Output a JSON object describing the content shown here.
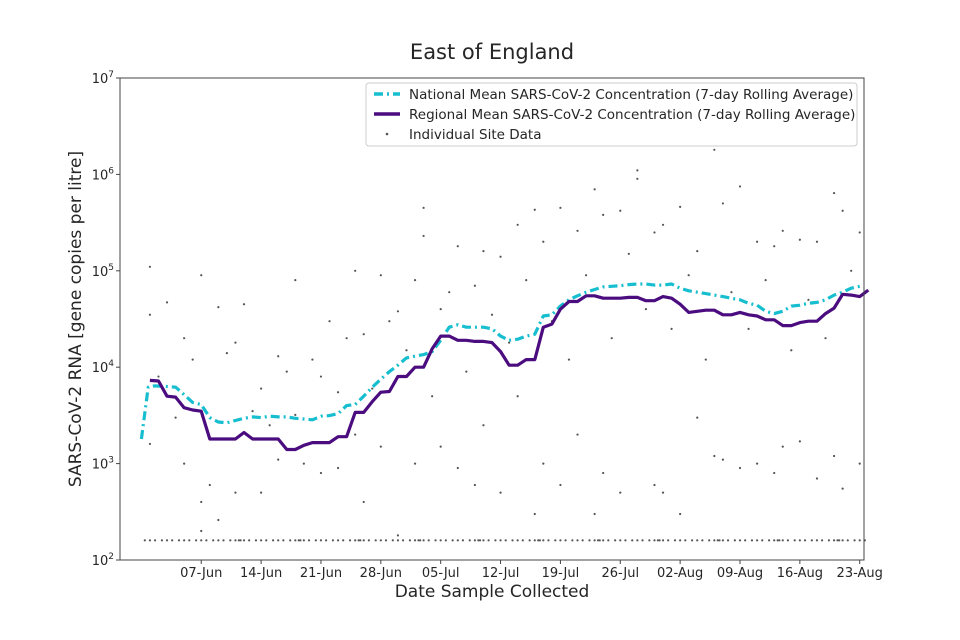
{
  "chart_data": {
    "type": "line",
    "title": "East of England",
    "xlabel": "Date Sample Collected",
    "ylabel": "SARS-CoV-2 RNA [gene copies per litre]",
    "yscale": "log",
    "ylim": [
      100,
      10000000
    ],
    "x_range_days": [
      0,
      84
    ],
    "x_unit": "days since 31-May",
    "grid": false,
    "legend_position": "top-right",
    "x_ticks": [
      {
        "day": 7,
        "label": "07-Jun"
      },
      {
        "day": 14,
        "label": "14-Jun"
      },
      {
        "day": 21,
        "label": "21-Jun"
      },
      {
        "day": 28,
        "label": "28-Jun"
      },
      {
        "day": 35,
        "label": "05-Jul"
      },
      {
        "day": 42,
        "label": "12-Jul"
      },
      {
        "day": 49,
        "label": "19-Jul"
      },
      {
        "day": 56,
        "label": "26-Jul"
      },
      {
        "day": 63,
        "label": "02-Aug"
      },
      {
        "day": 70,
        "label": "09-Aug"
      },
      {
        "day": 77,
        "label": "16-Aug"
      },
      {
        "day": 84,
        "label": "23-Aug"
      }
    ],
    "y_ticks": [
      {
        "value": 100,
        "base": "10",
        "exp": "2"
      },
      {
        "value": 1000,
        "base": "10",
        "exp": "3"
      },
      {
        "value": 10000,
        "base": "10",
        "exp": "4"
      },
      {
        "value": 100000,
        "base": "10",
        "exp": "5"
      },
      {
        "value": 1000000,
        "base": "10",
        "exp": "6"
      },
      {
        "value": 10000000,
        "base": "10",
        "exp": "7"
      }
    ],
    "series": [
      {
        "name": "National Mean SARS-CoV-2 Concentration (7-day Rolling Average)",
        "color": "#17becf",
        "style": "dashdot",
        "points": [
          [
            0,
            1800
          ],
          [
            0.8,
            6200
          ],
          [
            1.5,
            6400
          ],
          [
            3,
            6300
          ],
          [
            4,
            6200
          ],
          [
            5,
            5200
          ],
          [
            6,
            4300
          ],
          [
            7,
            4100
          ],
          [
            8,
            3000
          ],
          [
            9,
            2700
          ],
          [
            10,
            2650
          ],
          [
            11,
            2800
          ],
          [
            12,
            2950
          ],
          [
            13,
            3050
          ],
          [
            14,
            3000
          ],
          [
            15,
            3100
          ],
          [
            16,
            3050
          ],
          [
            17,
            3050
          ],
          [
            18,
            2950
          ],
          [
            19,
            2900
          ],
          [
            20,
            2850
          ],
          [
            21,
            3100
          ],
          [
            22,
            3150
          ],
          [
            23,
            3300
          ],
          [
            24,
            4000
          ],
          [
            25,
            4100
          ],
          [
            26,
            5000
          ],
          [
            27,
            6200
          ],
          [
            28,
            7500
          ],
          [
            29,
            9000
          ],
          [
            30,
            10500
          ],
          [
            31,
            12500
          ],
          [
            32,
            13000
          ],
          [
            33,
            13500
          ],
          [
            34,
            14500
          ],
          [
            35,
            19000
          ],
          [
            36,
            26000
          ],
          [
            37,
            27500
          ],
          [
            38,
            26000
          ],
          [
            39,
            26000
          ],
          [
            40,
            26000
          ],
          [
            41,
            25000
          ],
          [
            42,
            21000
          ],
          [
            43,
            19000
          ],
          [
            44,
            19500
          ],
          [
            45,
            21000
          ],
          [
            46,
            22000
          ],
          [
            47,
            34000
          ],
          [
            48,
            35000
          ],
          [
            49,
            43000
          ],
          [
            50,
            50000
          ],
          [
            51,
            55000
          ],
          [
            52,
            60000
          ],
          [
            53,
            64000
          ],
          [
            54,
            68000
          ],
          [
            55,
            69000
          ],
          [
            56,
            70000
          ],
          [
            57,
            72000
          ],
          [
            58,
            73000
          ],
          [
            59,
            73000
          ],
          [
            60,
            71000
          ],
          [
            61,
            71000
          ],
          [
            62,
            73000
          ],
          [
            63,
            66000
          ],
          [
            64,
            62000
          ],
          [
            65,
            60000
          ],
          [
            66,
            58000
          ],
          [
            67,
            56000
          ],
          [
            68,
            54000
          ],
          [
            69,
            52000
          ],
          [
            70,
            50000
          ],
          [
            71,
            46000
          ],
          [
            72,
            44000
          ],
          [
            73,
            38000
          ],
          [
            74,
            36000
          ],
          [
            75,
            38000
          ],
          [
            76,
            43000
          ],
          [
            77,
            44000
          ],
          [
            78,
            46000
          ],
          [
            79,
            47000
          ],
          [
            80,
            50000
          ],
          [
            81,
            56000
          ],
          [
            82,
            60000
          ],
          [
            83,
            66000
          ],
          [
            84,
            69000
          ]
        ]
      },
      {
        "name": "Regional Mean SARS-CoV-2 Concentration (7-day Rolling Average)",
        "color": "#4b0c7f",
        "style": "solid",
        "points": [
          [
            1,
            7300
          ],
          [
            2,
            7200
          ],
          [
            3,
            5000
          ],
          [
            4,
            4900
          ],
          [
            5,
            3800
          ],
          [
            6,
            3600
          ],
          [
            7,
            3500
          ],
          [
            8,
            1800
          ],
          [
            9,
            1800
          ],
          [
            10,
            1800
          ],
          [
            11,
            1800
          ],
          [
            12,
            2100
          ],
          [
            13,
            1800
          ],
          [
            14,
            1800
          ],
          [
            15,
            1800
          ],
          [
            16,
            1800
          ],
          [
            17,
            1400
          ],
          [
            18,
            1400
          ],
          [
            19,
            1550
          ],
          [
            20,
            1650
          ],
          [
            21,
            1650
          ],
          [
            22,
            1650
          ],
          [
            23,
            1900
          ],
          [
            24,
            1900
          ],
          [
            25,
            3400
          ],
          [
            26,
            3400
          ],
          [
            27,
            4400
          ],
          [
            28,
            5500
          ],
          [
            29,
            5600
          ],
          [
            30,
            8000
          ],
          [
            31,
            8000
          ],
          [
            32,
            10000
          ],
          [
            33,
            10000
          ],
          [
            34,
            15500
          ],
          [
            35,
            21000
          ],
          [
            36,
            21000
          ],
          [
            37,
            19000
          ],
          [
            38,
            19000
          ],
          [
            39,
            18500
          ],
          [
            40,
            18500
          ],
          [
            41,
            18000
          ],
          [
            42,
            14500
          ],
          [
            43,
            10500
          ],
          [
            44,
            10500
          ],
          [
            45,
            12000
          ],
          [
            46,
            12000
          ],
          [
            47,
            26000
          ],
          [
            48,
            28000
          ],
          [
            49,
            40000
          ],
          [
            50,
            48000
          ],
          [
            51,
            48000
          ],
          [
            52,
            55000
          ],
          [
            53,
            55000
          ],
          [
            54,
            52000
          ],
          [
            55,
            52000
          ],
          [
            56,
            52000
          ],
          [
            57,
            53000
          ],
          [
            58,
            53000
          ],
          [
            59,
            49000
          ],
          [
            60,
            49000
          ],
          [
            61,
            54000
          ],
          [
            62,
            52000
          ],
          [
            63,
            45000
          ],
          [
            64,
            37000
          ],
          [
            65,
            38000
          ],
          [
            66,
            39000
          ],
          [
            67,
            39000
          ],
          [
            68,
            35000
          ],
          [
            69,
            35000
          ],
          [
            70,
            37000
          ],
          [
            71,
            35000
          ],
          [
            72,
            34000
          ],
          [
            73,
            31000
          ],
          [
            74,
            31000
          ],
          [
            75,
            27000
          ],
          [
            76,
            27000
          ],
          [
            77,
            29000
          ],
          [
            78,
            30000
          ],
          [
            79,
            30000
          ],
          [
            80,
            36000
          ],
          [
            81,
            41000
          ],
          [
            82,
            57000
          ],
          [
            83,
            56000
          ],
          [
            84,
            54000
          ],
          [
            85,
            63000
          ]
        ]
      }
    ],
    "scatter": {
      "name": "Individual Site Data",
      "color": "#555555",
      "sample_days": [
        1,
        3,
        5,
        7,
        9,
        11,
        12,
        14,
        16,
        18,
        19,
        21,
        23,
        25,
        26,
        28,
        30,
        32,
        33,
        35,
        37,
        39,
        40,
        42,
        44,
        46,
        47,
        49,
        51,
        53,
        54,
        56,
        58,
        60,
        61,
        63,
        65,
        67,
        68,
        70,
        72,
        74,
        75,
        77,
        79,
        81,
        82,
        84
      ],
      "points": [
        [
          1,
          1600
        ],
        [
          1,
          110000
        ],
        [
          1,
          35000
        ],
        [
          3,
          47000
        ],
        [
          5,
          20000
        ],
        [
          5,
          1000
        ],
        [
          7,
          90000
        ],
        [
          7,
          200
        ],
        [
          7,
          400
        ],
        [
          9,
          260
        ],
        [
          9,
          42000
        ],
        [
          11,
          18000
        ],
        [
          11,
          500
        ],
        [
          12,
          45000
        ],
        [
          14,
          6000
        ],
        [
          14,
          500
        ],
        [
          16,
          13000
        ],
        [
          16,
          1100
        ],
        [
          18,
          80000
        ],
        [
          18,
          3200
        ],
        [
          19,
          1000
        ],
        [
          21,
          8000
        ],
        [
          21,
          800
        ],
        [
          23,
          5500
        ],
        [
          23,
          900
        ],
        [
          25,
          100000
        ],
        [
          25,
          2000
        ],
        [
          26,
          22000
        ],
        [
          26,
          400
        ],
        [
          28,
          90000
        ],
        [
          28,
          1500
        ],
        [
          30,
          38000
        ],
        [
          30,
          180
        ],
        [
          32,
          80000
        ],
        [
          32,
          1000
        ],
        [
          33,
          450000
        ],
        [
          33,
          230000
        ],
        [
          35,
          40000
        ],
        [
          35,
          1500
        ],
        [
          37,
          180000
        ],
        [
          37,
          900
        ],
        [
          39,
          70000
        ],
        [
          39,
          600
        ],
        [
          40,
          160000
        ],
        [
          40,
          2500
        ],
        [
          42,
          140000
        ],
        [
          42,
          500
        ],
        [
          44,
          300000
        ],
        [
          44,
          5000
        ],
        [
          46,
          430000
        ],
        [
          46,
          300
        ],
        [
          47,
          200000
        ],
        [
          47,
          1000
        ],
        [
          49,
          450000
        ],
        [
          49,
          600
        ],
        [
          51,
          260000
        ],
        [
          51,
          2000
        ],
        [
          53,
          700000
        ],
        [
          53,
          300
        ],
        [
          54,
          380000
        ],
        [
          54,
          800
        ],
        [
          56,
          420000
        ],
        [
          56,
          500
        ],
        [
          58,
          1100000
        ],
        [
          58,
          900000
        ],
        [
          60,
          250000
        ],
        [
          60,
          600
        ],
        [
          61,
          300000
        ],
        [
          61,
          500
        ],
        [
          63,
          460000
        ],
        [
          63,
          300
        ],
        [
          65,
          160000
        ],
        [
          65,
          3000
        ],
        [
          67,
          1800000
        ],
        [
          67,
          1200
        ],
        [
          68,
          500000
        ],
        [
          68,
          1100
        ],
        [
          70,
          750000
        ],
        [
          70,
          900
        ],
        [
          72,
          200000
        ],
        [
          72,
          1000
        ],
        [
          74,
          180000
        ],
        [
          74,
          800
        ],
        [
          75,
          260000
        ],
        [
          75,
          1500
        ],
        [
          77,
          210000
        ],
        [
          77,
          1700
        ],
        [
          79,
          200000
        ],
        [
          79,
          700
        ],
        [
          81,
          640000
        ],
        [
          81,
          1200
        ],
        [
          82,
          420000
        ],
        [
          82,
          550
        ],
        [
          84,
          250000
        ],
        [
          84,
          1000
        ],
        [
          2,
          8000
        ],
        [
          4,
          3000
        ],
        [
          6,
          12000
        ],
        [
          8,
          600
        ],
        [
          10,
          14000
        ],
        [
          13,
          3500
        ],
        [
          15,
          2500
        ],
        [
          17,
          9000
        ],
        [
          20,
          12000
        ],
        [
          22,
          30000
        ],
        [
          24,
          20000
        ],
        [
          27,
          6000
        ],
        [
          29,
          30000
        ],
        [
          31,
          15000
        ],
        [
          34,
          5000
        ],
        [
          36,
          60000
        ],
        [
          38,
          9000
        ],
        [
          41,
          35000
        ],
        [
          43,
          18000
        ],
        [
          45,
          80000
        ],
        [
          48,
          30000
        ],
        [
          50,
          12000
        ],
        [
          52,
          90000
        ],
        [
          55,
          20000
        ],
        [
          57,
          150000
        ],
        [
          59,
          40000
        ],
        [
          62,
          25000
        ],
        [
          64,
          90000
        ],
        [
          66,
          12000
        ],
        [
          69,
          60000
        ],
        [
          71,
          25000
        ],
        [
          73,
          80000
        ],
        [
          76,
          15000
        ],
        [
          78,
          50000
        ],
        [
          80,
          20000
        ],
        [
          83,
          100000
        ]
      ]
    }
  }
}
